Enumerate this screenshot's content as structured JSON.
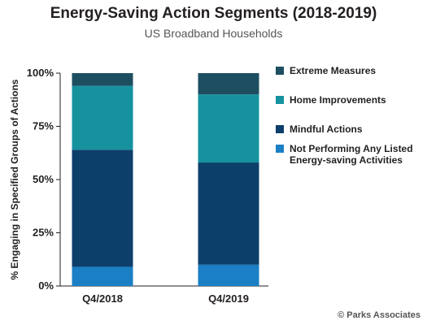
{
  "chart_data": {
    "type": "bar",
    "stacked": true,
    "title": "Energy-Saving Action Segments (2018-2019)",
    "subtitle": "US Broadband Households",
    "ylabel": "% Engaging in Specified Groups of Actions",
    "xlabel": "",
    "ylim": [
      0,
      100
    ],
    "yticks": [
      "0%",
      "25%",
      "50%",
      "75%",
      "100%"
    ],
    "categories": [
      "Q4/2018",
      "Q4/2019"
    ],
    "series": [
      {
        "name": "Not Performing Any Listed Energy-saving Activities",
        "color": "#1a7fc4",
        "values": [
          9,
          10
        ]
      },
      {
        "name": "Mindful Actions",
        "color": "#0d3f6b",
        "values": [
          55,
          48
        ]
      },
      {
        "name": "Home Improvements",
        "color": "#16929f",
        "values": [
          30,
          32
        ]
      },
      {
        "name": "Extreme Measures",
        "color": "#1d4f61",
        "values": [
          6,
          10
        ]
      }
    ],
    "legend_position": "right",
    "grid": false
  },
  "legend_order": [
    3,
    2,
    1,
    0
  ],
  "source": "© Parks Associates"
}
